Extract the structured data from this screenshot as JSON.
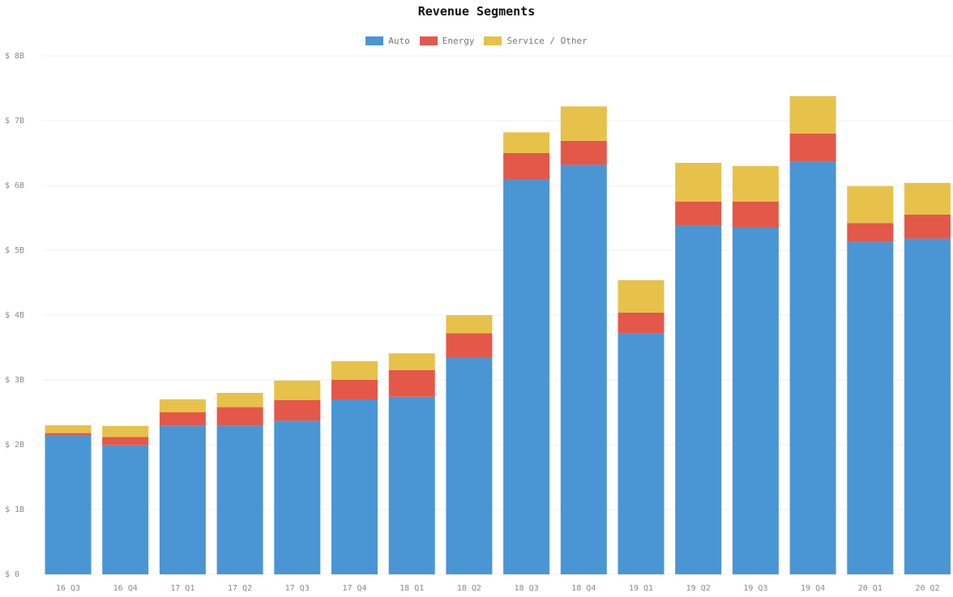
{
  "chart_data": {
    "type": "bar",
    "stacked": true,
    "title": "Revenue Segments",
    "xlabel": "",
    "ylabel": "",
    "legend_position": "top-center",
    "grid": true,
    "ylim": [
      0,
      8
    ],
    "y_ticks": [
      {
        "value": 0,
        "label": "$ 0"
      },
      {
        "value": 1,
        "label": "$ 1B"
      },
      {
        "value": 2,
        "label": "$ 2B"
      },
      {
        "value": 3,
        "label": "$ 3B"
      },
      {
        "value": 4,
        "label": "$ 4B"
      },
      {
        "value": 5,
        "label": "$ 5B"
      },
      {
        "value": 6,
        "label": "$ 6B"
      },
      {
        "value": 7,
        "label": "$ 7B"
      },
      {
        "value": 8,
        "label": "$ 8B"
      }
    ],
    "categories": [
      "16 Q3",
      "16 Q4",
      "17 Q1",
      "17 Q2",
      "17 Q3",
      "17 Q4",
      "18 Q1",
      "18 Q2",
      "18 Q3",
      "18 Q4",
      "19 Q1",
      "19 Q2",
      "19 Q3",
      "19 Q4",
      "20 Q1",
      "20 Q2"
    ],
    "series": [
      {
        "name": "Auto",
        "color": "#4a96d4",
        "values": [
          2.15,
          1.99,
          2.29,
          2.29,
          2.37,
          2.7,
          2.74,
          3.35,
          6.1,
          6.32,
          3.72,
          5.38,
          5.35,
          6.37,
          5.13,
          5.18
        ]
      },
      {
        "name": "Energy",
        "color": "#e4584a",
        "values": [
          0.03,
          0.13,
          0.21,
          0.29,
          0.32,
          0.3,
          0.41,
          0.37,
          0.4,
          0.37,
          0.32,
          0.37,
          0.4,
          0.43,
          0.29,
          0.37
        ]
      },
      {
        "name": "Service / Other",
        "color": "#e6c24a",
        "values": [
          0.12,
          0.17,
          0.2,
          0.22,
          0.3,
          0.29,
          0.26,
          0.28,
          0.32,
          0.53,
          0.5,
          0.6,
          0.55,
          0.58,
          0.57,
          0.49
        ]
      }
    ]
  }
}
